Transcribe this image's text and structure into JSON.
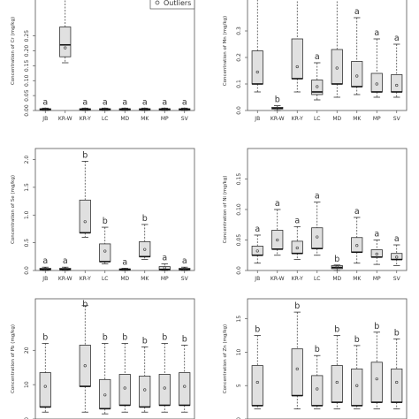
{
  "legend": {
    "label": "Outliers"
  },
  "colors": {
    "box_fill": "#e0e0e0",
    "stroke": "#333333",
    "frame": "#555555"
  },
  "chart_data": [
    {
      "type": "boxplot",
      "ylabel": "Concentration of Cr (mg/kg)",
      "ylim": [
        0,
        0.4
      ],
      "yticks": [
        "0.00",
        "0.05",
        "0.10",
        "0.15",
        "0.20",
        "0.25"
      ],
      "categories": [
        "JB",
        "KR-W",
        "KR-Y",
        "LC",
        "MD",
        "MK",
        "MP",
        "SV"
      ],
      "letters": [
        "a",
        "b",
        "a",
        "a",
        "a",
        "a",
        "a",
        "a"
      ],
      "boxes": [
        {
          "min": 0.0,
          "q1": 0.003,
          "median": 0.004,
          "q3": 0.006,
          "max": 0.008,
          "mean": 0.005
        },
        {
          "min": 0.16,
          "q1": 0.18,
          "median": 0.22,
          "q3": 0.28,
          "max": 0.4,
          "mean": 0.21
        },
        {
          "min": 0.0,
          "q1": 0.003,
          "median": 0.004,
          "q3": 0.006,
          "max": 0.008,
          "mean": 0.005
        },
        {
          "min": 0.0,
          "q1": 0.003,
          "median": 0.004,
          "q3": 0.006,
          "max": 0.008,
          "mean": 0.005
        },
        {
          "min": 0.0,
          "q1": 0.003,
          "median": 0.004,
          "q3": 0.006,
          "max": 0.008,
          "mean": 0.005
        },
        {
          "min": 0.0,
          "q1": 0.003,
          "median": 0.004,
          "q3": 0.006,
          "max": 0.008,
          "mean": 0.005
        },
        {
          "min": 0.0,
          "q1": 0.003,
          "median": 0.004,
          "q3": 0.006,
          "max": 0.008,
          "mean": 0.005
        },
        {
          "min": 0.0,
          "q1": 0.003,
          "median": 0.004,
          "q3": 0.006,
          "max": 0.008,
          "mean": 0.005
        }
      ],
      "legend": "top-right"
    },
    {
      "type": "boxplot",
      "ylabel": "Concentration of Mn (mg/kg)",
      "ylim": [
        0,
        0.45
      ],
      "yticks": [
        "0.0",
        "0.1",
        "0.2",
        "0.3"
      ],
      "ytick_values": [
        0.0,
        0.1,
        0.2,
        0.3
      ],
      "categories": [
        "JB",
        "KR-W",
        "KR-Y",
        "LC",
        "MD",
        "MK",
        "MP",
        "SV"
      ],
      "letters": [
        "a",
        "b",
        "a",
        "a",
        "a",
        "a",
        "a",
        "a"
      ],
      "boxes": [
        {
          "min": 0.07,
          "q1": 0.1,
          "median": 0.1,
          "q3": 0.225,
          "max": 0.43,
          "mean": 0.145
        },
        {
          "min": 0.0,
          "q1": 0.006,
          "median": 0.008,
          "q3": 0.012,
          "max": 0.018,
          "mean": 0.009
        },
        {
          "min": 0.07,
          "q1": 0.12,
          "median": 0.12,
          "q3": 0.27,
          "max": 0.47,
          "mean": 0.165
        },
        {
          "min": 0.04,
          "q1": 0.06,
          "median": 0.07,
          "q3": 0.115,
          "max": 0.18,
          "mean": 0.09
        },
        {
          "min": 0.05,
          "q1": 0.1,
          "median": 0.1,
          "q3": 0.23,
          "max": 0.47,
          "mean": 0.16
        },
        {
          "min": 0.06,
          "q1": 0.09,
          "median": 0.09,
          "q3": 0.185,
          "max": 0.35,
          "mean": 0.13
        },
        {
          "min": 0.05,
          "q1": 0.07,
          "median": 0.07,
          "q3": 0.14,
          "max": 0.27,
          "mean": 0.1
        },
        {
          "min": 0.05,
          "q1": 0.07,
          "median": 0.07,
          "q3": 0.135,
          "max": 0.25,
          "mean": 0.095
        }
      ]
    },
    {
      "type": "boxplot",
      "ylabel": "Concentration of Se (mg/kg)",
      "ylim": [
        0,
        2.2
      ],
      "yticks": [
        "0.0",
        "0.5",
        "1.0",
        "1.5",
        "2.0"
      ],
      "ytick_values": [
        0.0,
        0.5,
        1.0,
        1.5,
        2.0
      ],
      "categories": [
        "JB",
        "KR-W",
        "KR-Y",
        "LC",
        "MD",
        "MK",
        "MP",
        "SV"
      ],
      "letters": [
        "a",
        "a",
        "b",
        "b",
        "a",
        "b",
        "a",
        "a"
      ],
      "boxes": [
        {
          "min": 0.0,
          "q1": 0.01,
          "median": 0.02,
          "q3": 0.04,
          "max": 0.06,
          "mean": 0.03
        },
        {
          "min": 0.0,
          "q1": 0.01,
          "median": 0.02,
          "q3": 0.04,
          "max": 0.06,
          "mean": 0.03
        },
        {
          "min": 0.6,
          "q1": 0.68,
          "median": 0.68,
          "q3": 1.27,
          "max": 1.97,
          "mean": 0.88
        },
        {
          "min": 0.12,
          "q1": 0.16,
          "median": 0.16,
          "q3": 0.48,
          "max": 0.78,
          "mean": 0.35
        },
        {
          "min": 0.0,
          "q1": 0.01,
          "median": 0.02,
          "q3": 0.03,
          "max": 0.04,
          "mean": 0.02
        },
        {
          "min": 0.2,
          "q1": 0.25,
          "median": 0.25,
          "q3": 0.52,
          "max": 0.83,
          "mean": 0.38
        },
        {
          "min": 0.0,
          "q1": 0.01,
          "median": 0.02,
          "q3": 0.07,
          "max": 0.12,
          "mean": 0.05
        },
        {
          "min": 0.0,
          "q1": 0.01,
          "median": 0.02,
          "q3": 0.04,
          "max": 0.06,
          "mean": 0.03
        }
      ]
    },
    {
      "type": "boxplot",
      "ylabel": "Concentration of Ni (mg/kg)",
      "ylim": [
        0,
        0.2
      ],
      "yticks": [
        "0.0",
        "0.05",
        "0.10",
        "0.15"
      ],
      "ytick_values": [
        0.0,
        0.05,
        0.1,
        0.15
      ],
      "categories": [
        "JB",
        "KR-W",
        "KR-Y",
        "LC",
        "MD",
        "MK",
        "MP",
        "SV"
      ],
      "letters": [
        "a",
        "a",
        "a",
        "a",
        "b",
        "a",
        "a",
        "a"
      ],
      "boxes": [
        {
          "min": 0.012,
          "q1": 0.025,
          "median": 0.025,
          "q3": 0.04,
          "max": 0.058,
          "mean": 0.032
        },
        {
          "min": 0.025,
          "q1": 0.035,
          "median": 0.035,
          "q3": 0.066,
          "max": 0.1,
          "mean": 0.05
        },
        {
          "min": 0.018,
          "q1": 0.028,
          "median": 0.028,
          "q3": 0.048,
          "max": 0.072,
          "mean": 0.037
        },
        {
          "min": 0.025,
          "q1": 0.036,
          "median": 0.036,
          "q3": 0.07,
          "max": 0.112,
          "mean": 0.055
        },
        {
          "min": 0.0,
          "q1": 0.003,
          "median": 0.005,
          "q3": 0.008,
          "max": 0.009,
          "mean": 0.006
        },
        {
          "min": 0.012,
          "q1": 0.03,
          "median": 0.03,
          "q3": 0.054,
          "max": 0.087,
          "mean": 0.041
        },
        {
          "min": 0.01,
          "q1": 0.022,
          "median": 0.022,
          "q3": 0.034,
          "max": 0.05,
          "mean": 0.027
        },
        {
          "min": 0.008,
          "q1": 0.018,
          "median": 0.018,
          "q3": 0.028,
          "max": 0.042,
          "mean": 0.022
        }
      ]
    },
    {
      "type": "boxplot",
      "ylabel": "Concentration of Pb (mg/kg)",
      "ylim": [
        0,
        35
      ],
      "yticks": [
        "0",
        "10",
        "20"
      ],
      "ytick_values": [
        0,
        10,
        20
      ],
      "categories": [
        "",
        "",
        "",
        "",
        "",
        "",
        "",
        ""
      ],
      "letters": [
        "b",
        "b",
        "b",
        "b",
        "b",
        "b",
        "b",
        "b"
      ],
      "boxes": [
        {
          "min": 2,
          "q1": 3.5,
          "median": 3.5,
          "q3": 13.5,
          "max": 22,
          "mean": 9.5
        },
        {
          "empty": true
        },
        {
          "min": 2,
          "q1": 9.5,
          "median": 9.5,
          "q3": 21.5,
          "max": 33,
          "mean": 15.5
        },
        {
          "min": 1.5,
          "q1": 3,
          "median": 3,
          "q3": 11.5,
          "max": 22,
          "mean": 7
        },
        {
          "min": 2,
          "q1": 4,
          "median": 4,
          "q3": 13,
          "max": 22,
          "mean": 9
        },
        {
          "min": 2,
          "q1": 3.5,
          "median": 3.5,
          "q3": 12.5,
          "max": 21,
          "mean": 8.5
        },
        {
          "min": 2,
          "q1": 4,
          "median": 4,
          "q3": 13,
          "max": 22,
          "mean": 9
        },
        {
          "min": 2,
          "q1": 4,
          "median": 4,
          "q3": 13.5,
          "max": 21.5,
          "mean": 9.5
        }
      ]
    },
    {
      "type": "boxplot",
      "ylabel": "Concentration of Zn (mg/kg)",
      "ylim": [
        0,
        18
      ],
      "yticks": [
        "0",
        "5",
        "10",
        "15"
      ],
      "ytick_values": [
        0,
        5,
        10,
        15
      ],
      "categories": [
        "",
        "",
        "",
        "",
        "",
        "",
        "",
        ""
      ],
      "letters": [
        "b",
        "",
        "b",
        "b",
        "b",
        "b",
        "b",
        "b"
      ],
      "boxes": [
        {
          "min": 1.5,
          "q1": 2,
          "median": 2,
          "q3": 8,
          "max": 12.5,
          "mean": 5.5
        },
        {
          "empty": true
        },
        {
          "min": 1.5,
          "q1": 3.5,
          "median": 3.5,
          "q3": 10.5,
          "max": 16,
          "mean": 7.5
        },
        {
          "min": 1.5,
          "q1": 2,
          "median": 2,
          "q3": 6.5,
          "max": 9.5,
          "mean": 4.5
        },
        {
          "min": 1.5,
          "q1": 2.5,
          "median": 2.5,
          "q3": 8,
          "max": 12.5,
          "mean": 5.5
        },
        {
          "min": 1.5,
          "q1": 2,
          "median": 2,
          "q3": 7.5,
          "max": 11,
          "mean": 5
        },
        {
          "min": 1.5,
          "q1": 2.5,
          "median": 2.5,
          "q3": 8.5,
          "max": 13,
          "mean": 6
        },
        {
          "min": 1.5,
          "q1": 2.5,
          "median": 2.5,
          "q3": 7.5,
          "max": 12,
          "mean": 5.5
        }
      ]
    }
  ]
}
